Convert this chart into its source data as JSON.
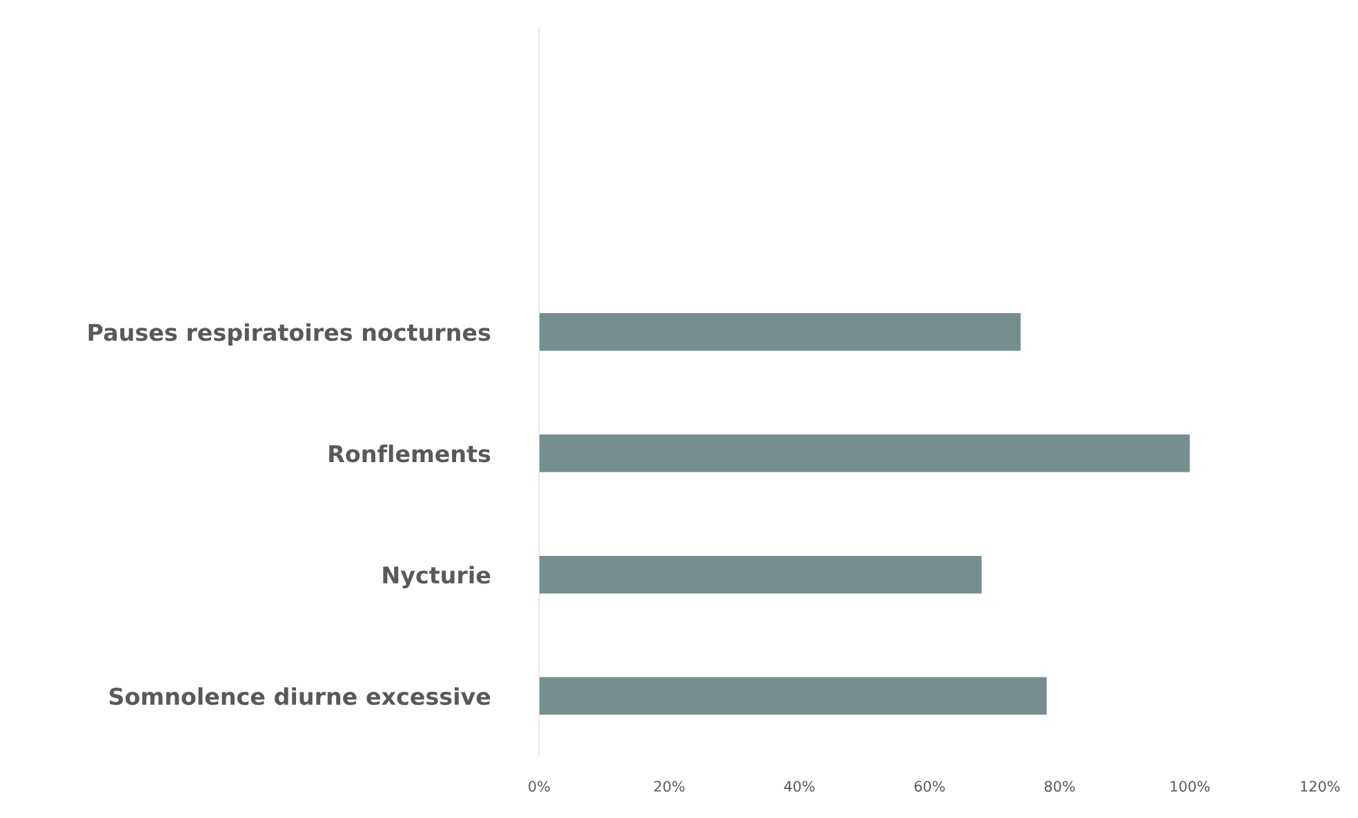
{
  "chart_data": {
    "type": "bar",
    "orientation": "horizontal",
    "categories": [
      null,
      null,
      "Pauses respiratoires nocturnes",
      "Ronflements",
      "Nycturie",
      "Somnolence diurne excessive"
    ],
    "values": [
      null,
      null,
      74,
      100,
      68,
      78
    ],
    "color": "#758f8f",
    "xlim": [
      0,
      120
    ],
    "xticks": [
      {
        "value": 0,
        "label": "0%"
      },
      {
        "value": 20,
        "label": "20%"
      },
      {
        "value": 40,
        "label": "40%"
      },
      {
        "value": 60,
        "label": "60%"
      },
      {
        "value": 80,
        "label": "80%"
      },
      {
        "value": 100,
        "label": "100%"
      },
      {
        "value": 120,
        "label": "120%"
      }
    ],
    "grid": false,
    "legend": false
  }
}
